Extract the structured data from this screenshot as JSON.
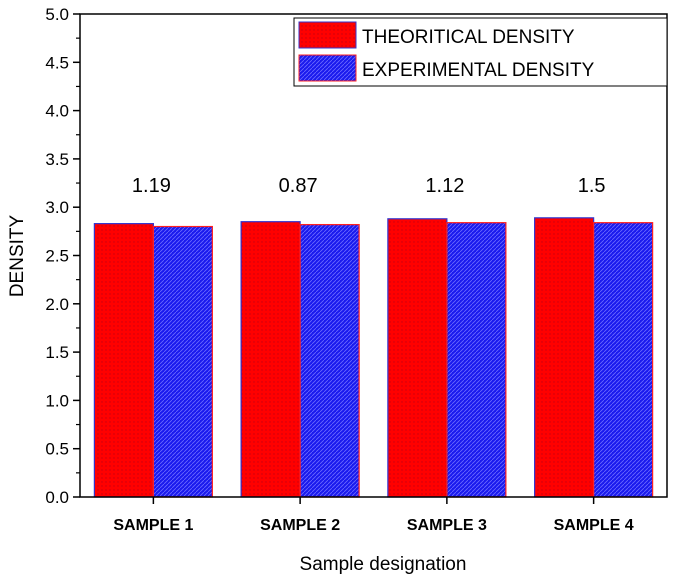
{
  "chart_data": {
    "type": "bar",
    "categories": [
      "SAMPLE 1",
      "SAMPLE 2",
      "SAMPLE 3",
      "SAMPLE 4"
    ],
    "series": [
      {
        "name": "THEORITICAL DENSITY",
        "values": [
          2.83,
          2.85,
          2.88,
          2.89
        ],
        "color": "#ff0000",
        "edge_color": "#3333cc"
      },
      {
        "name": "EXPERIMENTAL DENSITY",
        "values": [
          2.8,
          2.82,
          2.84,
          2.84
        ],
        "color": "#1a1aee",
        "edge_color": "#ff2020"
      }
    ],
    "annotations": [
      "1.19",
      "0.87",
      "1.12",
      "1.5"
    ],
    "xlabel": "Sample designation",
    "ylabel": "DENSITY",
    "ylim": [
      0,
      5.0
    ],
    "yticks": [
      "0.0",
      "0.5",
      "1.0",
      "1.5",
      "2.0",
      "2.5",
      "3.0",
      "3.5",
      "4.0",
      "4.5",
      "5.0"
    ],
    "legend_position": "top-right",
    "grid": false
  }
}
